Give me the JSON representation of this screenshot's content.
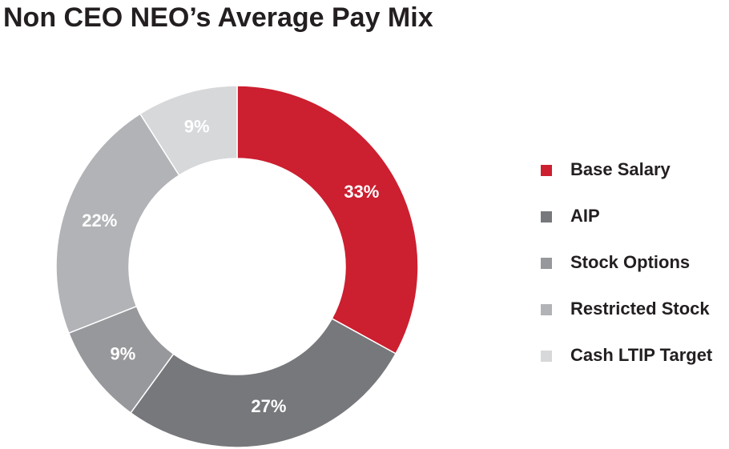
{
  "chart_data": {
    "type": "donut",
    "title": "Non CEO NEO’s Average Pay Mix",
    "categories": [
      "Base Salary",
      "AIP",
      "Stock Options",
      "Restricted Stock",
      "Cash LTIP Target"
    ],
    "values": [
      33,
      27,
      9,
      22,
      9
    ],
    "value_labels": [
      "33%",
      "27%",
      "9%",
      "22%",
      "9%"
    ],
    "colors": [
      "#cc1f30",
      "#77787b",
      "#97989b",
      "#b2b3b6",
      "#d7d8da"
    ],
    "legend": "right"
  }
}
